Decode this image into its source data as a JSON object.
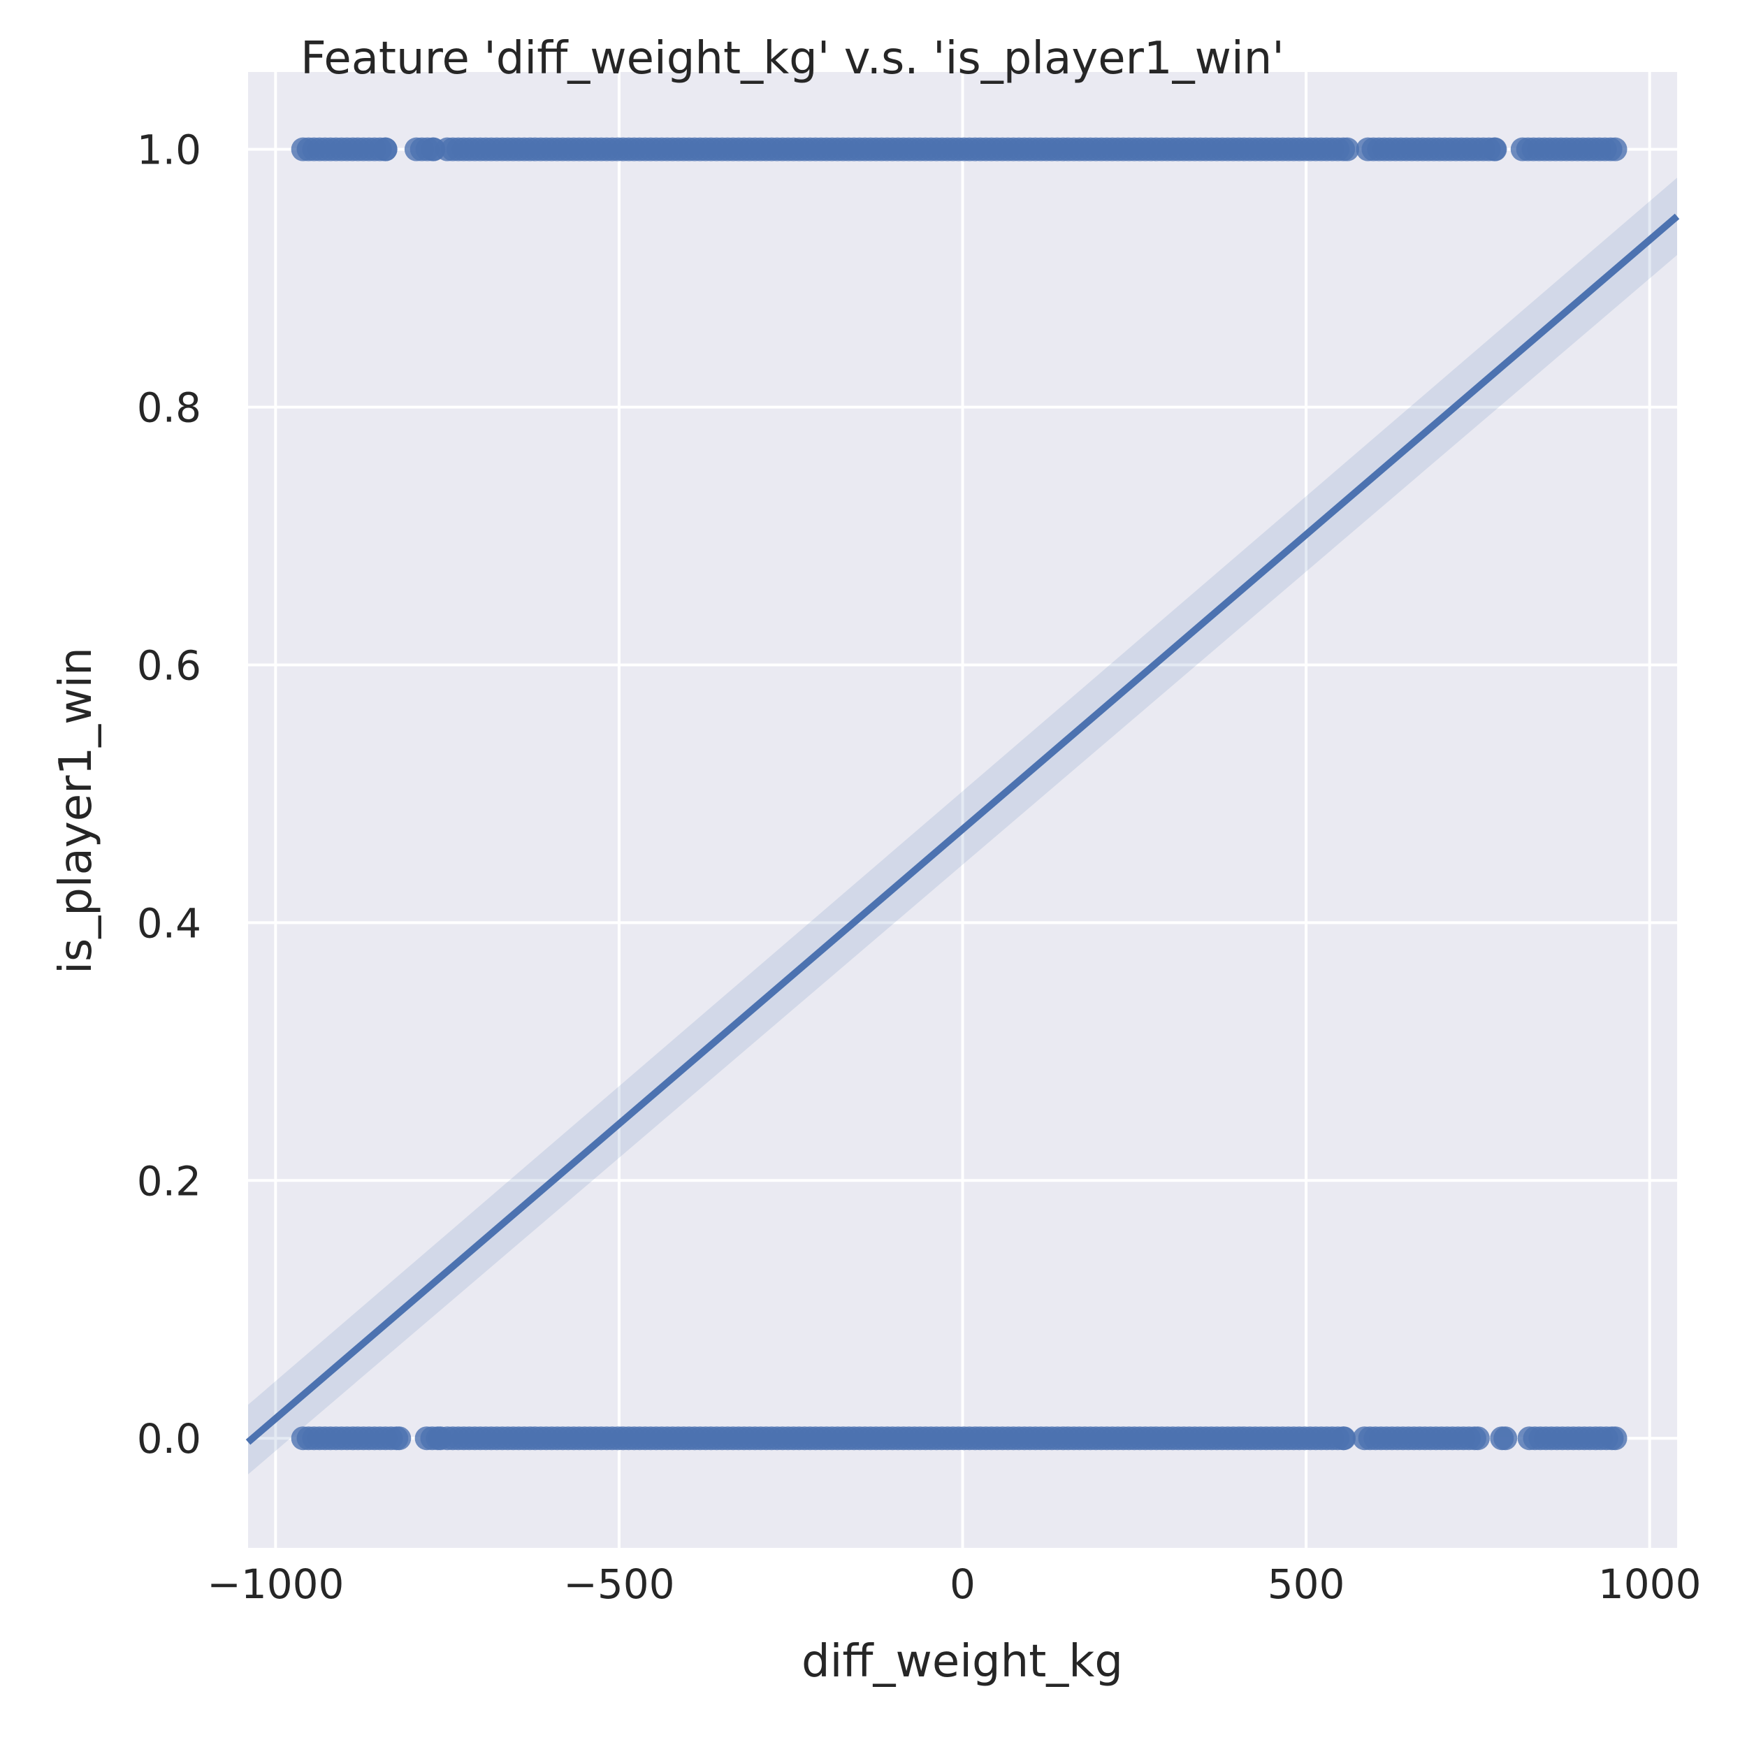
{
  "chart_data": {
    "type": "scatter",
    "title": "Feature 'diff_weight_kg' v.s. 'is_player1_win'",
    "xlabel": "diff_weight_kg",
    "ylabel": "is_player1_win",
    "xlim": [
      -1040,
      1040
    ],
    "ylim": [
      -0.085,
      1.06
    ],
    "xticks": [
      -1000,
      -500,
      0,
      500,
      1000
    ],
    "xtick_labels": [
      "−1000",
      "−500",
      "0",
      "500",
      "1000"
    ],
    "yticks": [
      0.0,
      0.2,
      0.4,
      0.6,
      0.8,
      1.0
    ],
    "ytick_labels": [
      "0.0",
      "0.2",
      "0.4",
      "0.6",
      "0.8",
      "1.0"
    ],
    "grid": true,
    "legend": false,
    "colors": {
      "points": "#4c72b0",
      "line": "#4c72b0",
      "background": "#eaeaf2",
      "grid": "#ffffff",
      "text": "#262626"
    },
    "series": [
      {
        "type": "scatter",
        "y_value": 1.0,
        "x_ranges": [
          [
            -960,
            -840
          ],
          [
            -795,
            -770
          ],
          [
            -750,
            560
          ],
          [
            590,
            775
          ],
          [
            815,
            950
          ]
        ]
      },
      {
        "type": "scatter",
        "y_value": 0.0,
        "x_ranges": [
          [
            -960,
            -820
          ],
          [
            -780,
            -760
          ],
          [
            -750,
            555
          ],
          [
            585,
            750
          ],
          [
            785,
            790
          ],
          [
            825,
            950
          ]
        ]
      }
    ],
    "regression": {
      "type": "line",
      "x": [
        -1040,
        1040
      ],
      "y": [
        -0.003,
        0.948
      ],
      "confidence_band": {
        "lower": [
          -0.028,
          0.918
        ],
        "upper": [
          0.026,
          0.978
        ]
      }
    }
  }
}
